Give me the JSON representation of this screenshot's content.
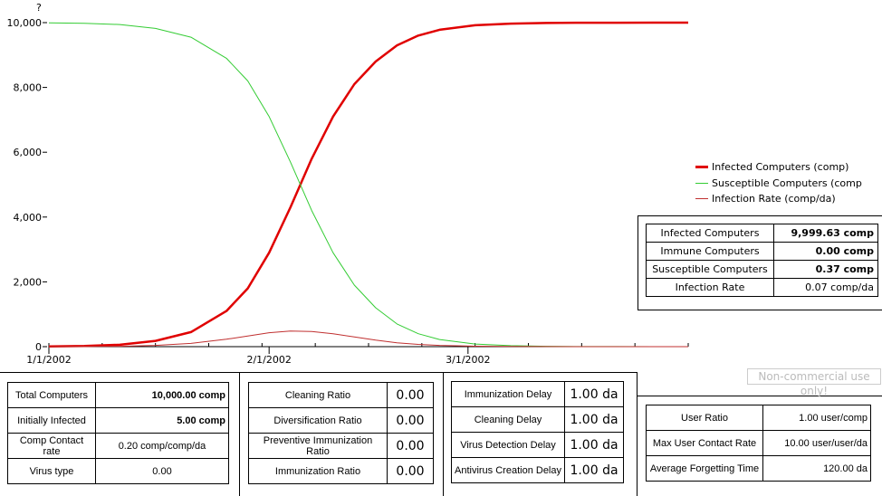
{
  "chart_data": {
    "type": "line",
    "y_axis_marker": "?",
    "y_ticks": [
      "0",
      "2,000",
      "4,000",
      "6,000",
      "8,000",
      "10,000"
    ],
    "ylim": [
      0,
      10000
    ],
    "x_tick_labels": [
      "1/1/2002",
      "2/1/2002",
      "3/1/2002"
    ],
    "x_unit": "days",
    "x_range": [
      0,
      90
    ],
    "x_tick_values": [
      0,
      31,
      59
    ],
    "series": [
      {
        "name": "Infected Computers (comp)",
        "color": "#e00000",
        "x": [
          0,
          5,
          10,
          15,
          20,
          25,
          28,
          31,
          34,
          37,
          40,
          43,
          46,
          49,
          52,
          55,
          60,
          65,
          70,
          75,
          80,
          85,
          90
        ],
        "y": [
          5,
          20,
          60,
          180,
          450,
          1100,
          1800,
          2900,
          4300,
          5800,
          7100,
          8100,
          8800,
          9300,
          9600,
          9780,
          9920,
          9970,
          9990,
          9996,
          9998,
          9999,
          9999.63
        ]
      },
      {
        "name": "Susceptible Computers (comp",
        "color": "#33cc33",
        "x": [
          0,
          5,
          10,
          15,
          20,
          25,
          28,
          31,
          34,
          37,
          40,
          43,
          46,
          49,
          52,
          55,
          60,
          65,
          70,
          75,
          80,
          85,
          90
        ],
        "y": [
          9995,
          9980,
          9940,
          9820,
          9550,
          8900,
          8200,
          7100,
          5700,
          4200,
          2900,
          1900,
          1200,
          700,
          400,
          220,
          80,
          30,
          10,
          4,
          2,
          1,
          0.37
        ]
      },
      {
        "name": "Infection Rate (comp/da)",
        "color": "#c03030",
        "x": [
          0,
          5,
          10,
          15,
          20,
          25,
          28,
          31,
          34,
          37,
          40,
          43,
          46,
          49,
          52,
          55,
          60,
          65,
          70,
          75,
          80,
          85,
          90
        ],
        "y": [
          1,
          4,
          12,
          40,
          100,
          230,
          330,
          430,
          480,
          470,
          400,
          300,
          200,
          120,
          70,
          40,
          15,
          5,
          2,
          1,
          0.3,
          0.1,
          0.07
        ]
      }
    ]
  },
  "readout": [
    {
      "label": "Infected Computers",
      "value": "9,999.63 comp"
    },
    {
      "label": "Immune Computers",
      "value": "0.00 comp"
    },
    {
      "label": "Susceptible Computers",
      "value": "0.37 comp"
    },
    {
      "label": "Infection Rate",
      "value": "0.07 comp/da"
    }
  ],
  "watermark": "Non-commercial use only!",
  "panel1": [
    {
      "label": "Total Computers",
      "value": "10,000.00 comp"
    },
    {
      "label": "Initially Infected",
      "value": "5.00 comp"
    },
    {
      "label": "Comp Contact rate",
      "value": "0.20 comp/comp/da"
    },
    {
      "label": "Virus type",
      "value": "0.00"
    }
  ],
  "panel2": [
    {
      "label": "Cleaning Ratio",
      "value": "0.00"
    },
    {
      "label": "Diversification Ratio",
      "value": "0.00"
    },
    {
      "label": "Preventive Immunization Ratio",
      "value": "0.00"
    },
    {
      "label": "Immunization Ratio",
      "value": "0.00"
    }
  ],
  "panel3": [
    {
      "label": "Immunization Delay",
      "value": "1.00 da"
    },
    {
      "label": "Cleaning Delay",
      "value": "1.00 da"
    },
    {
      "label": "Virus Detection Delay",
      "value": "1.00 da"
    },
    {
      "label": "Antivirus Creation Delay",
      "value": "1.00 da"
    }
  ],
  "panel4": [
    {
      "label": "User Ratio",
      "value": "1.00 user/comp"
    },
    {
      "label": "Max User Contact Rate",
      "value": "10.00 user/user/da"
    },
    {
      "label": "Average Forgetting Time",
      "value": "120.00 da"
    }
  ]
}
